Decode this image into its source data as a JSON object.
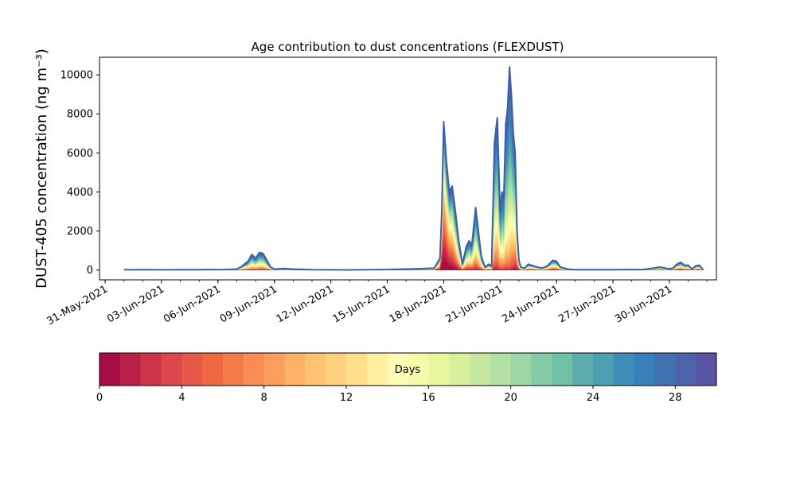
{
  "chart_data": {
    "type": "area",
    "title": "Age contribution to dust concentrations (FLEXDUST)",
    "xlabel": "",
    "ylabel": "DUST-405 concentration (ng m⁻³)",
    "x_tick_labels": [
      "31-May-2021",
      "03-Jun-2021",
      "06-Jun-2021",
      "09-Jun-2021",
      "12-Jun-2021",
      "15-Jun-2021",
      "18-Jun-2021",
      "21-Jun-2021",
      "24-Jun-2021",
      "27-Jun-2021",
      "30-Jun-2021"
    ],
    "x_tick_days": [
      0,
      3,
      6,
      9,
      12,
      15,
      18,
      21,
      24,
      27,
      30
    ],
    "y_ticks": [
      0,
      2000,
      4000,
      6000,
      8000,
      10000
    ],
    "ylim": [
      -500,
      10900
    ],
    "xlim_days": [
      -0.3,
      32.5
    ],
    "stacked_by": "age in days",
    "total_series": {
      "name": "",
      "x_days": [
        1.0,
        1.5,
        2.0,
        2.5,
        3.0,
        4.0,
        5.0,
        5.5,
        6.0,
        6.5,
        7.0,
        7.2,
        7.4,
        7.6,
        7.8,
        8.0,
        8.2,
        8.4,
        8.6,
        8.8,
        9.0,
        9.5,
        10.0,
        11.0,
        12.0,
        13.0,
        14.0,
        15.0,
        16.0,
        17.0,
        17.5,
        17.8,
        17.9,
        18.0,
        18.15,
        18.3,
        18.45,
        18.6,
        18.8,
        19.0,
        19.2,
        19.35,
        19.5,
        19.7,
        20.0,
        20.2,
        20.4,
        20.55,
        20.7,
        20.85,
        21.0,
        21.1,
        21.2,
        21.3,
        21.4,
        21.5,
        21.6,
        21.7,
        21.8,
        21.9,
        22.0,
        22.1,
        22.3,
        22.5,
        23.0,
        23.2,
        23.5,
        23.8,
        24.0,
        24.2,
        24.4,
        24.6,
        25.0,
        26.0,
        27.0,
        28.0,
        28.5,
        29.0,
        29.5,
        30.0,
        30.2,
        30.4,
        30.6,
        30.8,
        31.0,
        31.2,
        31.4,
        31.6,
        31.8
      ],
      "values": [
        20,
        15,
        25,
        20,
        15,
        20,
        20,
        30,
        20,
        30,
        50,
        150,
        300,
        450,
        800,
        600,
        900,
        850,
        500,
        150,
        50,
        80,
        50,
        20,
        15,
        10,
        20,
        30,
        50,
        80,
        100,
        600,
        3000,
        7600,
        5500,
        4000,
        4300,
        3200,
        1500,
        300,
        1200,
        1500,
        1300,
        3200,
        700,
        150,
        300,
        200,
        6500,
        7800,
        3000,
        4000,
        3800,
        7500,
        8300,
        10400,
        9000,
        7000,
        6000,
        2000,
        500,
        150,
        100,
        300,
        150,
        100,
        200,
        500,
        450,
        150,
        100,
        50,
        20,
        20,
        20,
        30,
        20,
        80,
        150,
        60,
        100,
        300,
        400,
        250,
        250,
        50,
        220,
        250,
        20
      ]
    },
    "age_profile": {
      "spike_fraction_below": [
        [
          0,
          0.0
        ],
        [
          18.0,
          0.62
        ],
        [
          19.0,
          0.4
        ],
        [
          21.0,
          0.3
        ],
        [
          21.5,
          0.22
        ],
        [
          22.0,
          0.5
        ],
        [
          32,
          0.5
        ]
      ],
      "baseline_fraction_below": 0.4
    },
    "colorbar": {
      "label": "Days",
      "ticks": [
        0,
        4,
        8,
        12,
        16,
        20,
        24,
        28
      ],
      "range": [
        0,
        30
      ],
      "colors": [
        "#a80e45",
        "#bb2148",
        "#cd344c",
        "#dc474c",
        "#e65949",
        "#ef6844",
        "#f67b4b",
        "#f98d55",
        "#fc9f5e",
        "#fdb266",
        "#fec271",
        "#fed17e",
        "#fee08b",
        "#ffef9e",
        "#fffab4",
        "#f5fbab",
        "#e9f69d",
        "#d8ef9b",
        "#c6e79e",
        "#b3e0a3",
        "#9bd6a4",
        "#84cca5",
        "#6fc0a6",
        "#5cadab",
        "#4e9fb2",
        "#3f8dba",
        "#3780ba",
        "#4271b2",
        "#4d64ab",
        "#5a54a4"
      ]
    }
  }
}
